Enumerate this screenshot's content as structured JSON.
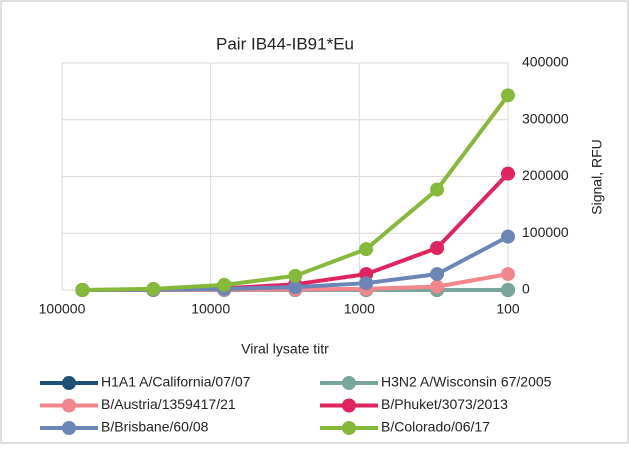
{
  "chart_data": {
    "type": "line",
    "title": "Pair IB44-IB91*Eu",
    "x_label": "Viral lysate titr",
    "y_label": "Signal, RFU",
    "x": [
      72900,
      24300,
      8100,
      2700,
      900,
      300,
      100
    ],
    "xlim": [
      100000,
      100
    ],
    "xticks": [
      100000,
      10000,
      1000,
      100
    ],
    "x_log": true,
    "ylim": [
      0,
      400000
    ],
    "yticks": [
      0,
      100000,
      200000,
      300000,
      400000
    ],
    "y_axis_side": "right",
    "grid": true,
    "series": [
      {
        "name": "H1A1 A/California/07/07",
        "color": "#1f4e79",
        "values": [
          0,
          0,
          0,
          0,
          0,
          0,
          0
        ]
      },
      {
        "name": "H3N2 A/Wisconsin 67/2005",
        "color": "#78a59c",
        "values": [
          0,
          0,
          0,
          0,
          0,
          0,
          0
        ]
      },
      {
        "name": "B/Austria/1359417/21",
        "color": "#f2868c",
        "values": [
          0,
          0,
          500,
          1000,
          2000,
          6000,
          28000
        ]
      },
      {
        "name": "B/Phuket/3073/2013",
        "color": "#e0245e",
        "values": [
          0,
          500,
          3000,
          10000,
          28000,
          74000,
          205000
        ]
      },
      {
        "name": "B/Brisbane/60/08",
        "color": "#6a85b6",
        "values": [
          0,
          500,
          2000,
          5000,
          12000,
          28000,
          94000
        ]
      },
      {
        "name": "B/Colorado/06/17",
        "color": "#86b83a",
        "values": [
          0,
          2000,
          9000,
          25000,
          72000,
          177000,
          343000
        ]
      }
    ]
  }
}
